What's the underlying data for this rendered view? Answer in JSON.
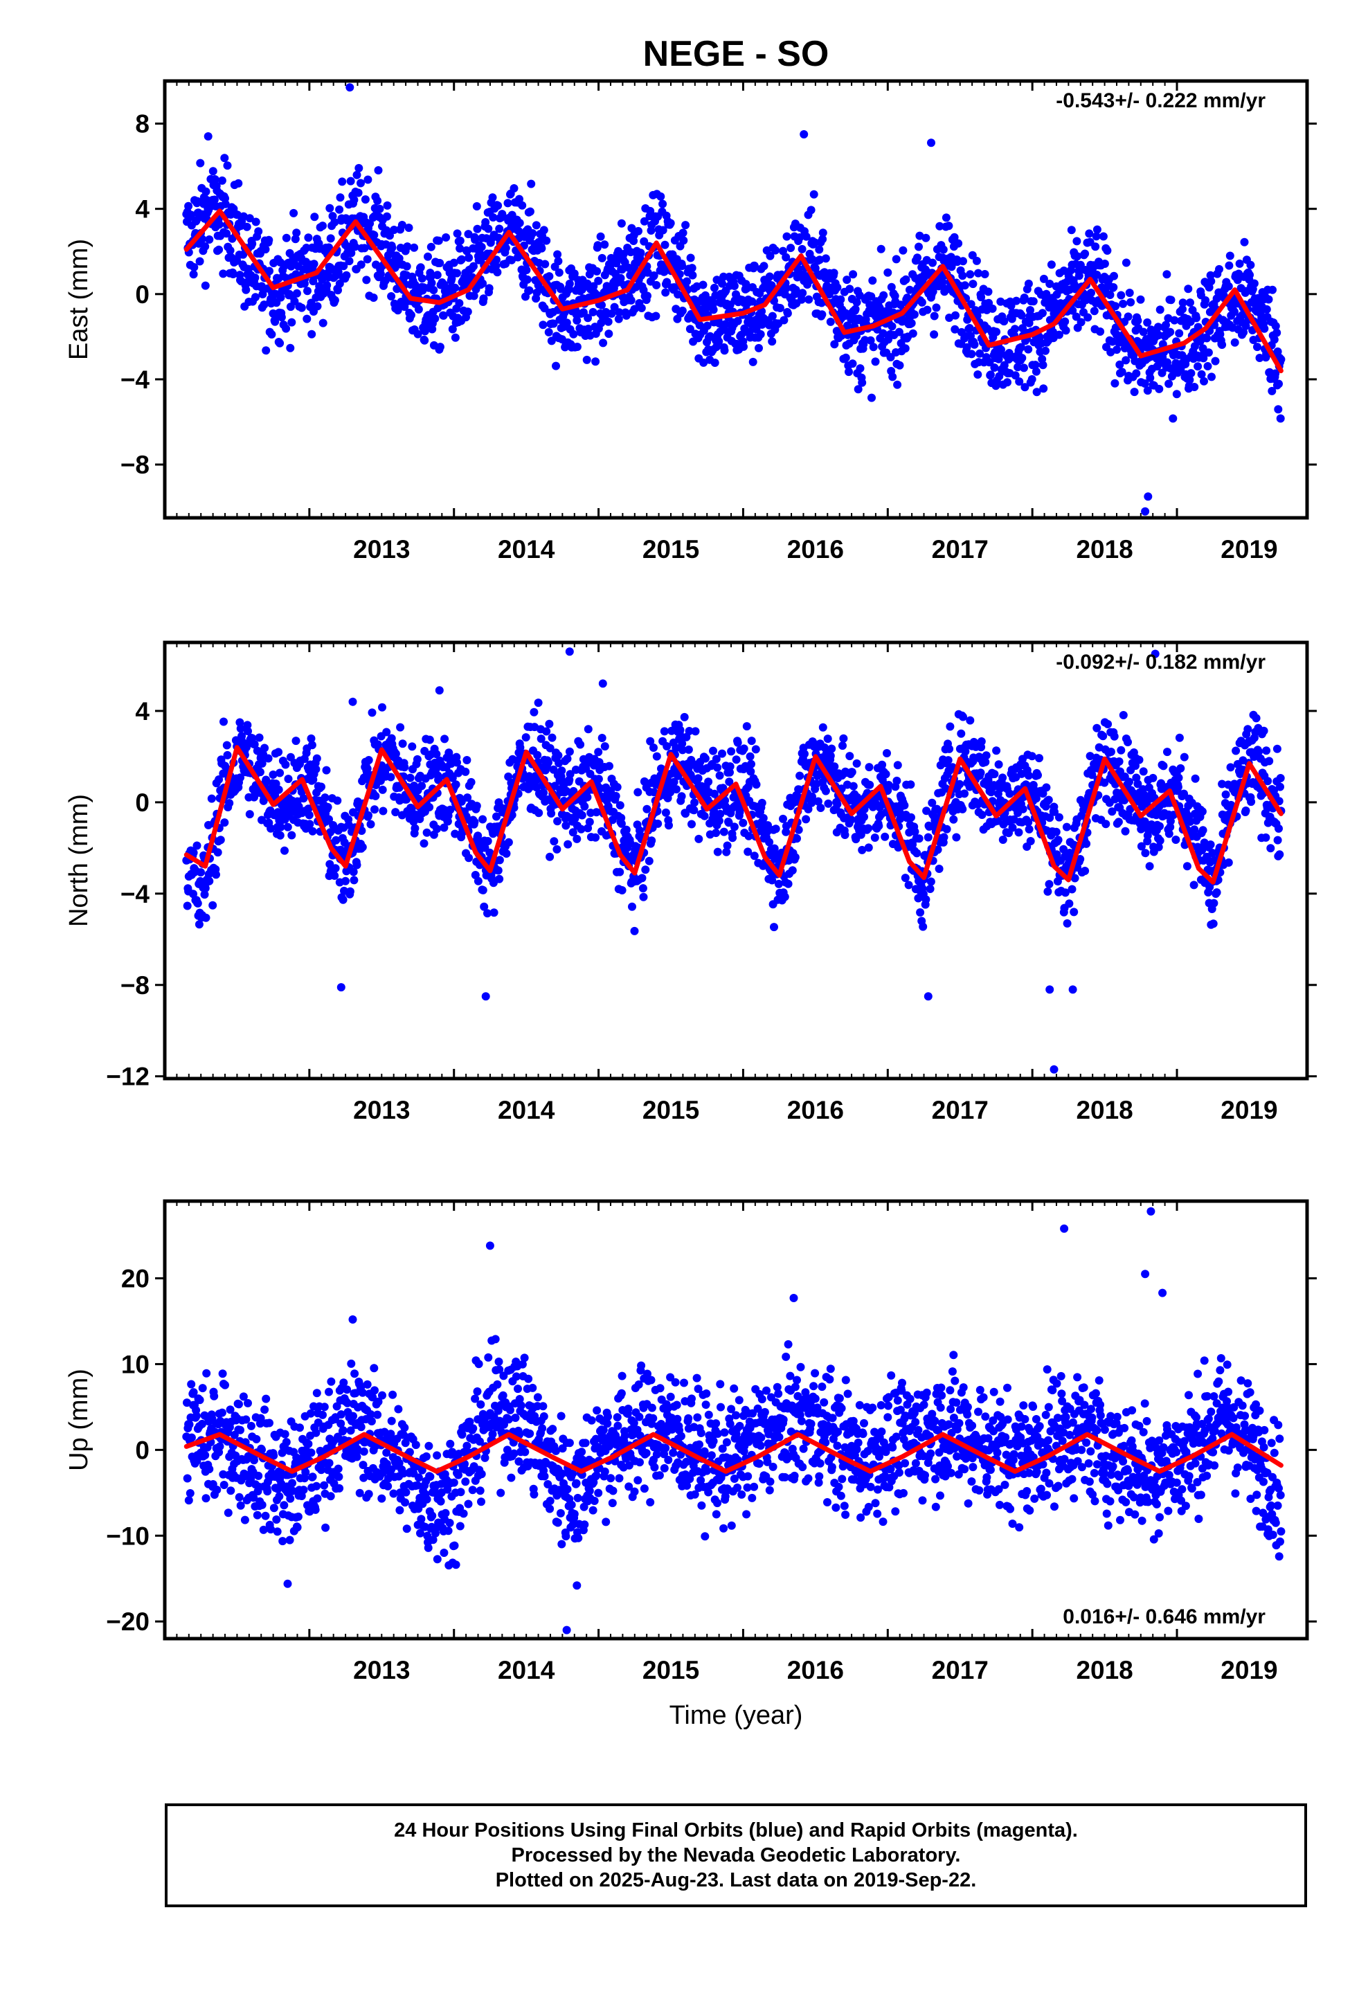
{
  "title": "NEGE - SO",
  "xlabel": "Time (year)",
  "x_ticks": [
    "2013",
    "2014",
    "2015",
    "2016",
    "2017",
    "2018",
    "2019"
  ],
  "chart_data": [
    {
      "type": "scatter",
      "ylabel": "East (mm)",
      "annotation": "-0.543+/- 0.222 mm/yr",
      "xlim": [
        2012.0,
        2019.9
      ],
      "ylim": [
        -10.5,
        10
      ],
      "y_ticks": [
        8,
        4,
        0,
        -4,
        -8
      ],
      "y_tick_labels": [
        "8",
        "4",
        "0",
        "−4",
        "−8"
      ],
      "series": [
        {
          "type": "scatter",
          "color": "#0000ff",
          "x": [
            2012.15,
            2012.3,
            2012.45,
            2012.6,
            2012.75,
            2012.9,
            2013.05,
            2013.2,
            2013.35,
            2013.5,
            2013.65,
            2013.8,
            2013.95,
            2014.1,
            2014.25,
            2014.4,
            2014.55,
            2014.7,
            2014.85,
            2015.0,
            2015.15,
            2015.3,
            2015.45,
            2015.6,
            2015.75,
            2015.9,
            2016.05,
            2016.2,
            2016.35,
            2016.5,
            2016.65,
            2016.8,
            2016.95,
            2017.1,
            2017.25,
            2017.4,
            2017.55,
            2017.7,
            2017.85,
            2018.0,
            2018.15,
            2018.3,
            2018.45,
            2018.6,
            2018.75,
            2018.9,
            2019.05,
            2019.2,
            2019.35,
            2019.5,
            2019.65,
            2019.72
          ],
          "y": [
            2.5,
            3.8,
            3.5,
            1.0,
            0.2,
            0.8,
            1.0,
            2.0,
            3.4,
            2.5,
            0.5,
            -0.3,
            0.0,
            0.5,
            2.0,
            2.8,
            2.0,
            -0.5,
            -0.8,
            -0.2,
            0.5,
            1.8,
            2.2,
            0.5,
            -1.2,
            -1.0,
            -0.8,
            -0.2,
            1.2,
            1.5,
            -0.5,
            -1.8,
            -1.5,
            -1.0,
            0.5,
            1.2,
            -0.2,
            -2.0,
            -2.2,
            -1.8,
            -1.0,
            0.2,
            0.6,
            -1.5,
            -3.0,
            -2.6,
            -2.4,
            -1.5,
            -0.5,
            -0.2,
            -2.0,
            -3.5
          ],
          "outliers_x": [
            2012.3,
            2013.28,
            2016.42,
            2017.3,
            2018.78,
            2018.8
          ],
          "outliers_y": [
            7.4,
            9.7,
            7.5,
            7.1,
            -10.2,
            -9.5
          ]
        },
        {
          "type": "line",
          "name": "",
          "color": "#ff0000",
          "x": [
            2012.15,
            2012.38,
            2012.75,
            2013.05,
            2013.32,
            2013.7,
            2013.9,
            2014.1,
            2014.38,
            2014.75,
            2015.0,
            2015.2,
            2015.4,
            2015.7,
            2016.0,
            2016.15,
            2016.4,
            2016.7,
            2016.9,
            2017.1,
            2017.38,
            2017.7,
            2018.0,
            2018.15,
            2018.4,
            2018.75,
            2019.05,
            2019.2,
            2019.4,
            2019.72
          ],
          "y": [
            2.1,
            3.9,
            0.3,
            1.0,
            3.4,
            -0.2,
            -0.4,
            0.2,
            2.9,
            -0.7,
            -0.3,
            0.2,
            2.4,
            -1.2,
            -0.9,
            -0.5,
            1.8,
            -1.8,
            -1.5,
            -0.9,
            1.3,
            -2.4,
            -1.9,
            -1.4,
            0.7,
            -2.9,
            -2.3,
            -1.6,
            0.2,
            -3.6
          ]
        }
      ]
    },
    {
      "type": "scatter",
      "ylabel": "North (mm)",
      "annotation": "-0.092+/- 0.182 mm/yr",
      "xlim": [
        2012.0,
        2019.9
      ],
      "ylim": [
        -12.1,
        7
      ],
      "y_ticks": [
        4,
        0,
        -4,
        -8,
        -12
      ],
      "y_tick_labels": [
        "4",
        "0",
        "−4",
        "−8",
        "−12"
      ],
      "series": [
        {
          "type": "scatter",
          "color": "#0000ff",
          "x": [
            2012.15,
            2012.25,
            2012.4,
            2012.55,
            2012.7,
            2012.85,
            2013.0,
            2013.15,
            2013.25,
            2013.4,
            2013.55,
            2013.7,
            2013.85,
            2014.0,
            2014.15,
            2014.25,
            2014.4,
            2014.55,
            2014.7,
            2014.85,
            2015.0,
            2015.15,
            2015.25,
            2015.4,
            2015.55,
            2015.7,
            2015.85,
            2016.0,
            2016.15,
            2016.25,
            2016.4,
            2016.55,
            2016.7,
            2016.85,
            2017.0,
            2017.15,
            2017.25,
            2017.4,
            2017.55,
            2017.7,
            2017.85,
            2018.0,
            2018.15,
            2018.25,
            2018.4,
            2018.55,
            2018.7,
            2018.85,
            2019.0,
            2019.15,
            2019.25,
            2019.4,
            2019.55,
            2019.72
          ],
          "y": [
            -2.5,
            -4.5,
            0.5,
            2.2,
            0.5,
            0.2,
            1.0,
            -1.5,
            -3.0,
            0.8,
            2.0,
            0.2,
            0.8,
            0.8,
            -1.5,
            -3.2,
            0.5,
            2.0,
            0.5,
            0.2,
            0.8,
            -1.5,
            -3.2,
            0.5,
            2.0,
            0.5,
            0.2,
            0.8,
            -1.5,
            -3.2,
            0.5,
            2.0,
            0.2,
            -0.5,
            0.5,
            -1.5,
            -3.5,
            0.5,
            2.0,
            0.5,
            0.2,
            0.5,
            -1.5,
            -3.8,
            0.5,
            2.0,
            0.5,
            -0.5,
            0.5,
            -1.5,
            -4.0,
            0.5,
            1.8,
            -0.8
          ],
          "outliers_x": [
            2013.22,
            2013.3,
            2013.9,
            2014.22,
            2014.8,
            2015.03,
            2017.28,
            2018.15,
            2018.12,
            2018.28,
            2018.85
          ],
          "outliers_y": [
            -8.1,
            4.4,
            4.9,
            -8.5,
            6.6,
            5.2,
            -8.5,
            -11.7,
            -8.2,
            -8.2,
            6.5
          ]
        },
        {
          "type": "line",
          "name": "",
          "color": "#ff0000",
          "x": [
            2012.15,
            2012.28,
            2012.5,
            2012.75,
            2012.95,
            2013.15,
            2013.25,
            2013.5,
            2013.75,
            2013.95,
            2014.15,
            2014.25,
            2014.5,
            2014.75,
            2014.95,
            2015.15,
            2015.25,
            2015.5,
            2015.75,
            2015.95,
            2016.15,
            2016.25,
            2016.5,
            2016.75,
            2016.95,
            2017.15,
            2017.25,
            2017.5,
            2017.75,
            2017.95,
            2018.15,
            2018.25,
            2018.5,
            2018.75,
            2018.95,
            2019.15,
            2019.25,
            2019.5,
            2019.72
          ],
          "y": [
            -2.3,
            -2.8,
            2.4,
            -0.1,
            1.0,
            -2.0,
            -2.8,
            2.3,
            -0.2,
            1.0,
            -2.2,
            -3.0,
            2.2,
            -0.3,
            0.9,
            -2.3,
            -3.1,
            2.1,
            -0.3,
            0.8,
            -2.4,
            -3.2,
            2.0,
            -0.5,
            0.7,
            -2.6,
            -3.3,
            1.9,
            -0.6,
            0.6,
            -2.8,
            -3.4,
            1.9,
            -0.6,
            0.5,
            -2.9,
            -3.5,
            1.7,
            -0.5
          ]
        }
      ]
    },
    {
      "type": "scatter",
      "ylabel": "Up (mm)",
      "annotation": "0.016+/- 0.646 mm/yr",
      "xlim": [
        2012.0,
        2019.9
      ],
      "ylim": [
        -22,
        29
      ],
      "y_ticks": [
        20,
        10,
        0,
        -10,
        -20
      ],
      "y_tick_labels": [
        "20",
        "10",
        "0",
        "−10",
        "−20"
      ],
      "series": [
        {
          "type": "scatter",
          "color": "#0000ff",
          "x": [
            2012.15,
            2012.3,
            2012.45,
            2012.6,
            2012.75,
            2012.9,
            2013.05,
            2013.2,
            2013.35,
            2013.5,
            2013.65,
            2013.8,
            2013.95,
            2014.1,
            2014.25,
            2014.4,
            2014.55,
            2014.7,
            2014.85,
            2015.0,
            2015.15,
            2015.3,
            2015.45,
            2015.6,
            2015.75,
            2015.9,
            2016.05,
            2016.2,
            2016.35,
            2016.5,
            2016.65,
            2016.8,
            2016.95,
            2017.1,
            2017.25,
            2017.4,
            2017.55,
            2017.7,
            2017.85,
            2018.0,
            2018.15,
            2018.3,
            2018.45,
            2018.6,
            2018.75,
            2018.9,
            2019.05,
            2019.2,
            2019.35,
            2019.5,
            2019.65,
            2019.72
          ],
          "y": [
            2.0,
            0.5,
            1.5,
            -1.0,
            -3.0,
            -4.0,
            -1.0,
            2.0,
            3.0,
            0.5,
            -2.0,
            -5.0,
            -6.0,
            -1.0,
            4.0,
            5.0,
            2.0,
            -3.0,
            -5.0,
            0.0,
            1.0,
            2.0,
            2.5,
            1.0,
            -1.0,
            -1.5,
            0.5,
            2.0,
            3.0,
            3.0,
            1.0,
            -1.0,
            0.0,
            0.5,
            2.0,
            2.5,
            1.5,
            0.5,
            -1.0,
            -0.5,
            1.5,
            2.0,
            1.0,
            -1.0,
            -2.0,
            -2.0,
            -1.0,
            2.0,
            4.0,
            0.5,
            -3.0,
            -5.0
          ],
          "outliers_x": [
            2012.85,
            2013.3,
            2014.25,
            2014.78,
            2014.85,
            2016.35,
            2018.22,
            2018.78,
            2018.82,
            2018.9
          ],
          "outliers_y": [
            -15.6,
            15.2,
            23.8,
            -21.0,
            -15.8,
            17.7,
            25.8,
            20.5,
            27.8,
            18.3
          ]
        },
        {
          "type": "line",
          "name": "",
          "color": "#ff0000",
          "x": [
            2012.15,
            2012.38,
            2012.7,
            2012.88,
            2013.1,
            2013.38,
            2013.7,
            2013.88,
            2014.1,
            2014.38,
            2014.7,
            2014.88,
            2015.1,
            2015.38,
            2015.7,
            2015.88,
            2016.1,
            2016.38,
            2016.7,
            2016.88,
            2017.1,
            2017.38,
            2017.7,
            2017.88,
            2018.1,
            2018.38,
            2018.7,
            2018.88,
            2019.1,
            2019.38,
            2019.72
          ],
          "y": [
            0.4,
            1.8,
            -1.0,
            -2.5,
            -0.8,
            1.8,
            -1.0,
            -2.5,
            -0.8,
            1.8,
            -1.0,
            -2.5,
            -0.8,
            1.8,
            -1.0,
            -2.5,
            -0.8,
            1.8,
            -1.0,
            -2.5,
            -0.8,
            1.8,
            -1.0,
            -2.5,
            -0.8,
            1.8,
            -1.0,
            -2.5,
            -0.8,
            1.8,
            -1.8
          ]
        }
      ]
    }
  ],
  "footer": {
    "line1": "24 Hour Positions Using Final Orbits (blue) and Rapid Orbits (magenta).",
    "line2": "Processed by the Nevada Geodetic Laboratory.",
    "line3": "Plotted on 2025-Aug-23. Last data on 2019-Sep-22."
  }
}
